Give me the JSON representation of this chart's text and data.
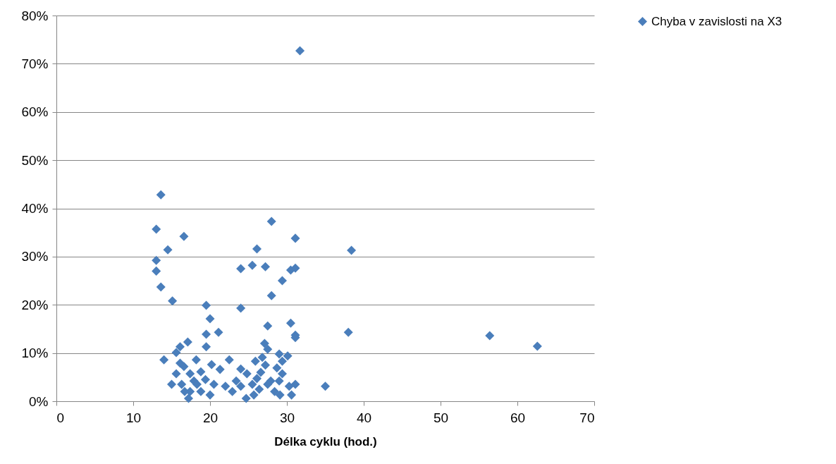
{
  "chart_data": {
    "type": "scatter",
    "xlabel": "Délka cyklu (hod.)",
    "xlim": [
      0,
      70
    ],
    "xticks": [
      0,
      10,
      20,
      30,
      40,
      50,
      60,
      70
    ],
    "ylim": [
      0,
      80
    ],
    "yticks": [
      {
        "value": 0,
        "label": "0%"
      },
      {
        "value": 10,
        "label": "10%"
      },
      {
        "value": 20,
        "label": "20%"
      },
      {
        "value": 30,
        "label": "30%"
      },
      {
        "value": 40,
        "label": "40%"
      },
      {
        "value": 50,
        "label": "50%"
      },
      {
        "value": 60,
        "label": "60%"
      },
      {
        "value": 70,
        "label": "70%"
      },
      {
        "value": 80,
        "label": "80%"
      }
    ],
    "grid": "y",
    "legend": "right",
    "marker": "diamond",
    "series": [
      {
        "name": "Chyba v zavislosti na X3",
        "color": "#4a7ebb",
        "x": [
          13.0,
          13.6,
          13.0,
          13.0,
          13.6,
          14.5,
          16.6,
          15.1,
          19.5,
          20.0,
          19.5,
          21.1,
          19.5,
          14.0,
          17.1,
          16.1,
          15.6,
          15.0,
          16.6,
          17.2,
          17.4,
          17.9,
          18.8,
          20.2,
          21.3,
          20.5,
          20.0,
          18.2,
          19.4,
          22.5,
          22.0,
          22.9,
          24.0,
          24.0,
          24.7,
          25.5,
          26.1,
          26.6,
          27.2,
          25.9,
          24.0,
          24.0,
          25.5,
          26.1,
          27.2,
          28.0,
          28.0,
          27.5,
          27.1,
          27.5,
          29.4,
          30.5,
          31.1,
          31.1,
          30.5,
          31.1,
          31.1,
          29.0,
          30.1,
          29.4,
          27.9,
          29.0,
          28.4,
          29.1,
          30.3,
          31.1,
          30.6,
          35.0,
          31.7,
          38.0,
          38.4,
          56.4,
          62.6,
          15.6,
          16.3,
          16.7,
          18.3,
          18.8,
          16.1,
          17.4,
          23.4,
          24.8,
          25.7,
          26.4,
          27.5,
          28.7,
          29.4,
          26.8
        ],
        "values": [
          35.7,
          42.8,
          29.2,
          27.0,
          23.7,
          31.4,
          34.2,
          20.8,
          19.9,
          17.1,
          13.9,
          14.3,
          11.3,
          8.6,
          12.3,
          11.3,
          10.1,
          3.5,
          7.2,
          0.6,
          2.0,
          4.2,
          6.1,
          7.6,
          6.6,
          3.5,
          1.3,
          8.6,
          4.5,
          8.6,
          3.1,
          2.0,
          3.1,
          6.7,
          0.6,
          3.5,
          4.7,
          6.0,
          7.5,
          8.3,
          27.5,
          19.3,
          28.2,
          31.6,
          27.9,
          37.3,
          21.9,
          15.6,
          12.0,
          10.8,
          25.0,
          27.2,
          27.6,
          33.8,
          16.2,
          13.7,
          13.2,
          9.8,
          9.4,
          8.3,
          4.2,
          4.2,
          2.0,
          1.3,
          3.1,
          3.5,
          1.3,
          3.1,
          72.7,
          14.3,
          31.3,
          13.6,
          11.4,
          5.7,
          3.5,
          2.0,
          3.5,
          2.0,
          7.9,
          5.7,
          4.2,
          5.7,
          1.3,
          2.5,
          3.5,
          6.9,
          5.7,
          9.1
        ]
      }
    ]
  }
}
